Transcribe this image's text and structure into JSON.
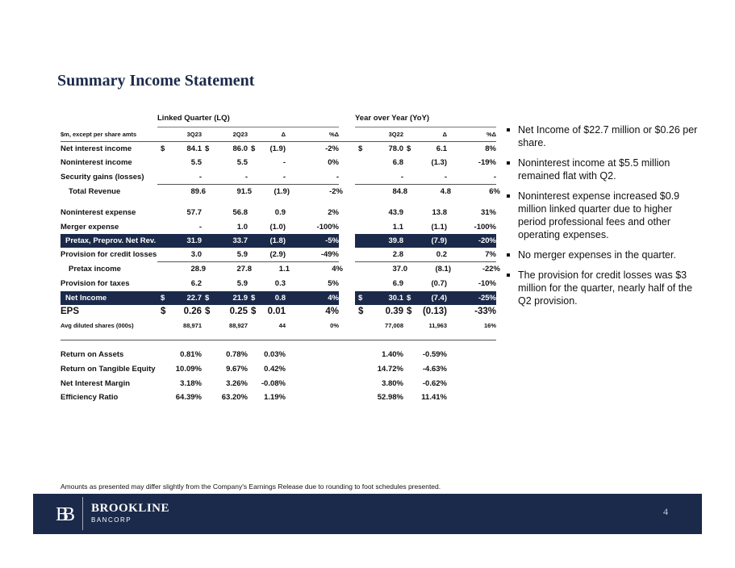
{
  "title": "Summary Income Statement",
  "groups": {
    "lq": "Linked Quarter (LQ)",
    "yoy": "Year over Year (YoY)"
  },
  "header": [
    "$m, except per share amts",
    "",
    "3Q23",
    "",
    "2Q23",
    "",
    "Δ",
    "%Δ",
    "",
    "",
    "3Q22",
    "",
    "Δ",
    "%Δ"
  ],
  "rows": [
    {
      "style": "normal",
      "cells": [
        "Net interest income",
        "$",
        "84.1",
        "$",
        "86.0",
        "$",
        "(1.9)",
        "-2%",
        "",
        "$",
        "78.0",
        "$",
        "6.1",
        "8%"
      ]
    },
    {
      "style": "normal",
      "cells": [
        "Noninterest income",
        "",
        "5.5",
        "",
        "5.5",
        "",
        "-",
        "0%",
        "",
        "",
        "6.8",
        "",
        "(1.3)",
        "-19%"
      ]
    },
    {
      "style": "normal",
      "cells": [
        "Security gains (losses)",
        "",
        "-",
        "",
        "-",
        "",
        "-",
        "-",
        "",
        "",
        "-",
        "",
        "-",
        "-"
      ]
    },
    {
      "style": "indent",
      "cells": [
        "Total Revenue",
        "",
        "89.6",
        "",
        "91.5",
        "",
        "(1.9)",
        "-2%",
        "",
        "",
        "84.8",
        "",
        "4.8",
        "6%"
      ]
    },
    {
      "style": "normal",
      "cells": [
        "Noninterest expense",
        "",
        "57.7",
        "",
        "56.8",
        "",
        "0.9",
        "2%",
        "",
        "",
        "43.9",
        "",
        "13.8",
        "31%"
      ]
    },
    {
      "style": "normal",
      "cells": [
        "Merger expense",
        "",
        "-",
        "",
        "1.0",
        "",
        "(1.0)",
        "-100%",
        "",
        "",
        "1.1",
        "",
        "(1.1)",
        "-100%"
      ]
    },
    {
      "style": "navy",
      "cells": [
        "Pretax, Preprov. Net Rev.",
        "",
        "31.9",
        "",
        "33.7",
        "",
        "(1.8)",
        "-5%",
        "",
        "",
        "39.8",
        "",
        "(7.9)",
        "-20%"
      ]
    },
    {
      "style": "normal",
      "cells": [
        "Provision for credit losses",
        "",
        "3.0",
        "",
        "5.9",
        "",
        "(2.9)",
        "-49%",
        "",
        "",
        "2.8",
        "",
        "0.2",
        "7%"
      ]
    },
    {
      "style": "indent",
      "cells": [
        "Pretax income",
        "",
        "28.9",
        "",
        "27.8",
        "",
        "1.1",
        "4%",
        "",
        "",
        "37.0",
        "",
        "(8.1)",
        "-22%"
      ]
    },
    {
      "style": "normal",
      "cells": [
        "Provision for taxes",
        "",
        "6.2",
        "",
        "5.9",
        "",
        "0.3",
        "5%",
        "",
        "",
        "6.9",
        "",
        "(0.7)",
        "-10%"
      ]
    },
    {
      "style": "navy",
      "cells": [
        "Net Income",
        "$",
        "22.7",
        "$",
        "21.9",
        "$",
        "0.8",
        "4%",
        "",
        "$",
        "30.1",
        "$",
        "(7.4)",
        "-25%"
      ]
    },
    {
      "style": "big",
      "cells": [
        "EPS",
        "$",
        "0.26",
        "$",
        "0.25",
        "$",
        "0.01",
        "4%",
        "",
        "$",
        "0.39",
        "$",
        "(0.13)",
        "-33%"
      ]
    },
    {
      "style": "small",
      "cells": [
        "Avg diluted shares (000s)",
        "",
        "88,971",
        "",
        "88,927",
        "",
        "44",
        "0%",
        "",
        "",
        "77,008",
        "",
        "11,963",
        "16%"
      ]
    }
  ],
  "ratios": [
    {
      "cells": [
        "Return on Assets",
        "",
        "0.81%",
        "",
        "0.78%",
        "",
        "0.03%",
        "",
        "",
        "",
        "1.40%",
        "",
        "-0.59%",
        ""
      ]
    },
    {
      "cells": [
        "Return on Tangible Equity",
        "",
        "10.09%",
        "",
        "9.67%",
        "",
        "0.42%",
        "",
        "",
        "",
        "14.72%",
        "",
        "-4.63%",
        ""
      ]
    },
    {
      "cells": [
        "Net Interest Margin",
        "",
        "3.18%",
        "",
        "3.26%",
        "",
        "-0.08%",
        "",
        "",
        "",
        "3.80%",
        "",
        "-0.62%",
        ""
      ]
    },
    {
      "cells": [
        "Efficiency Ratio",
        "",
        "64.39%",
        "",
        "63.20%",
        "",
        "1.19%",
        "",
        "",
        "",
        "52.98%",
        "",
        "11.41%",
        ""
      ]
    }
  ],
  "bullets": [
    "Net Income of $22.7 million or $0.26 per share.",
    "Noninterest income at $5.5 million remained flat with Q2.",
    "Noninterest expense increased $0.9 million linked quarter due to higher period professional fees and other operating expenses.",
    "No merger expenses in the quarter.",
    "The provision for credit losses was $3 million for the quarter, nearly half of the Q2 provision."
  ],
  "footnote": "Amounts as presented may differ slightly from the Company's Earnings Release due to rounding to foot schedules presented.",
  "footer": {
    "logo_mark": "BB",
    "company": "BROOKLINE",
    "sub": "BANCORP",
    "page": "4"
  },
  "colors": {
    "navy": "#1b2a4a"
  }
}
